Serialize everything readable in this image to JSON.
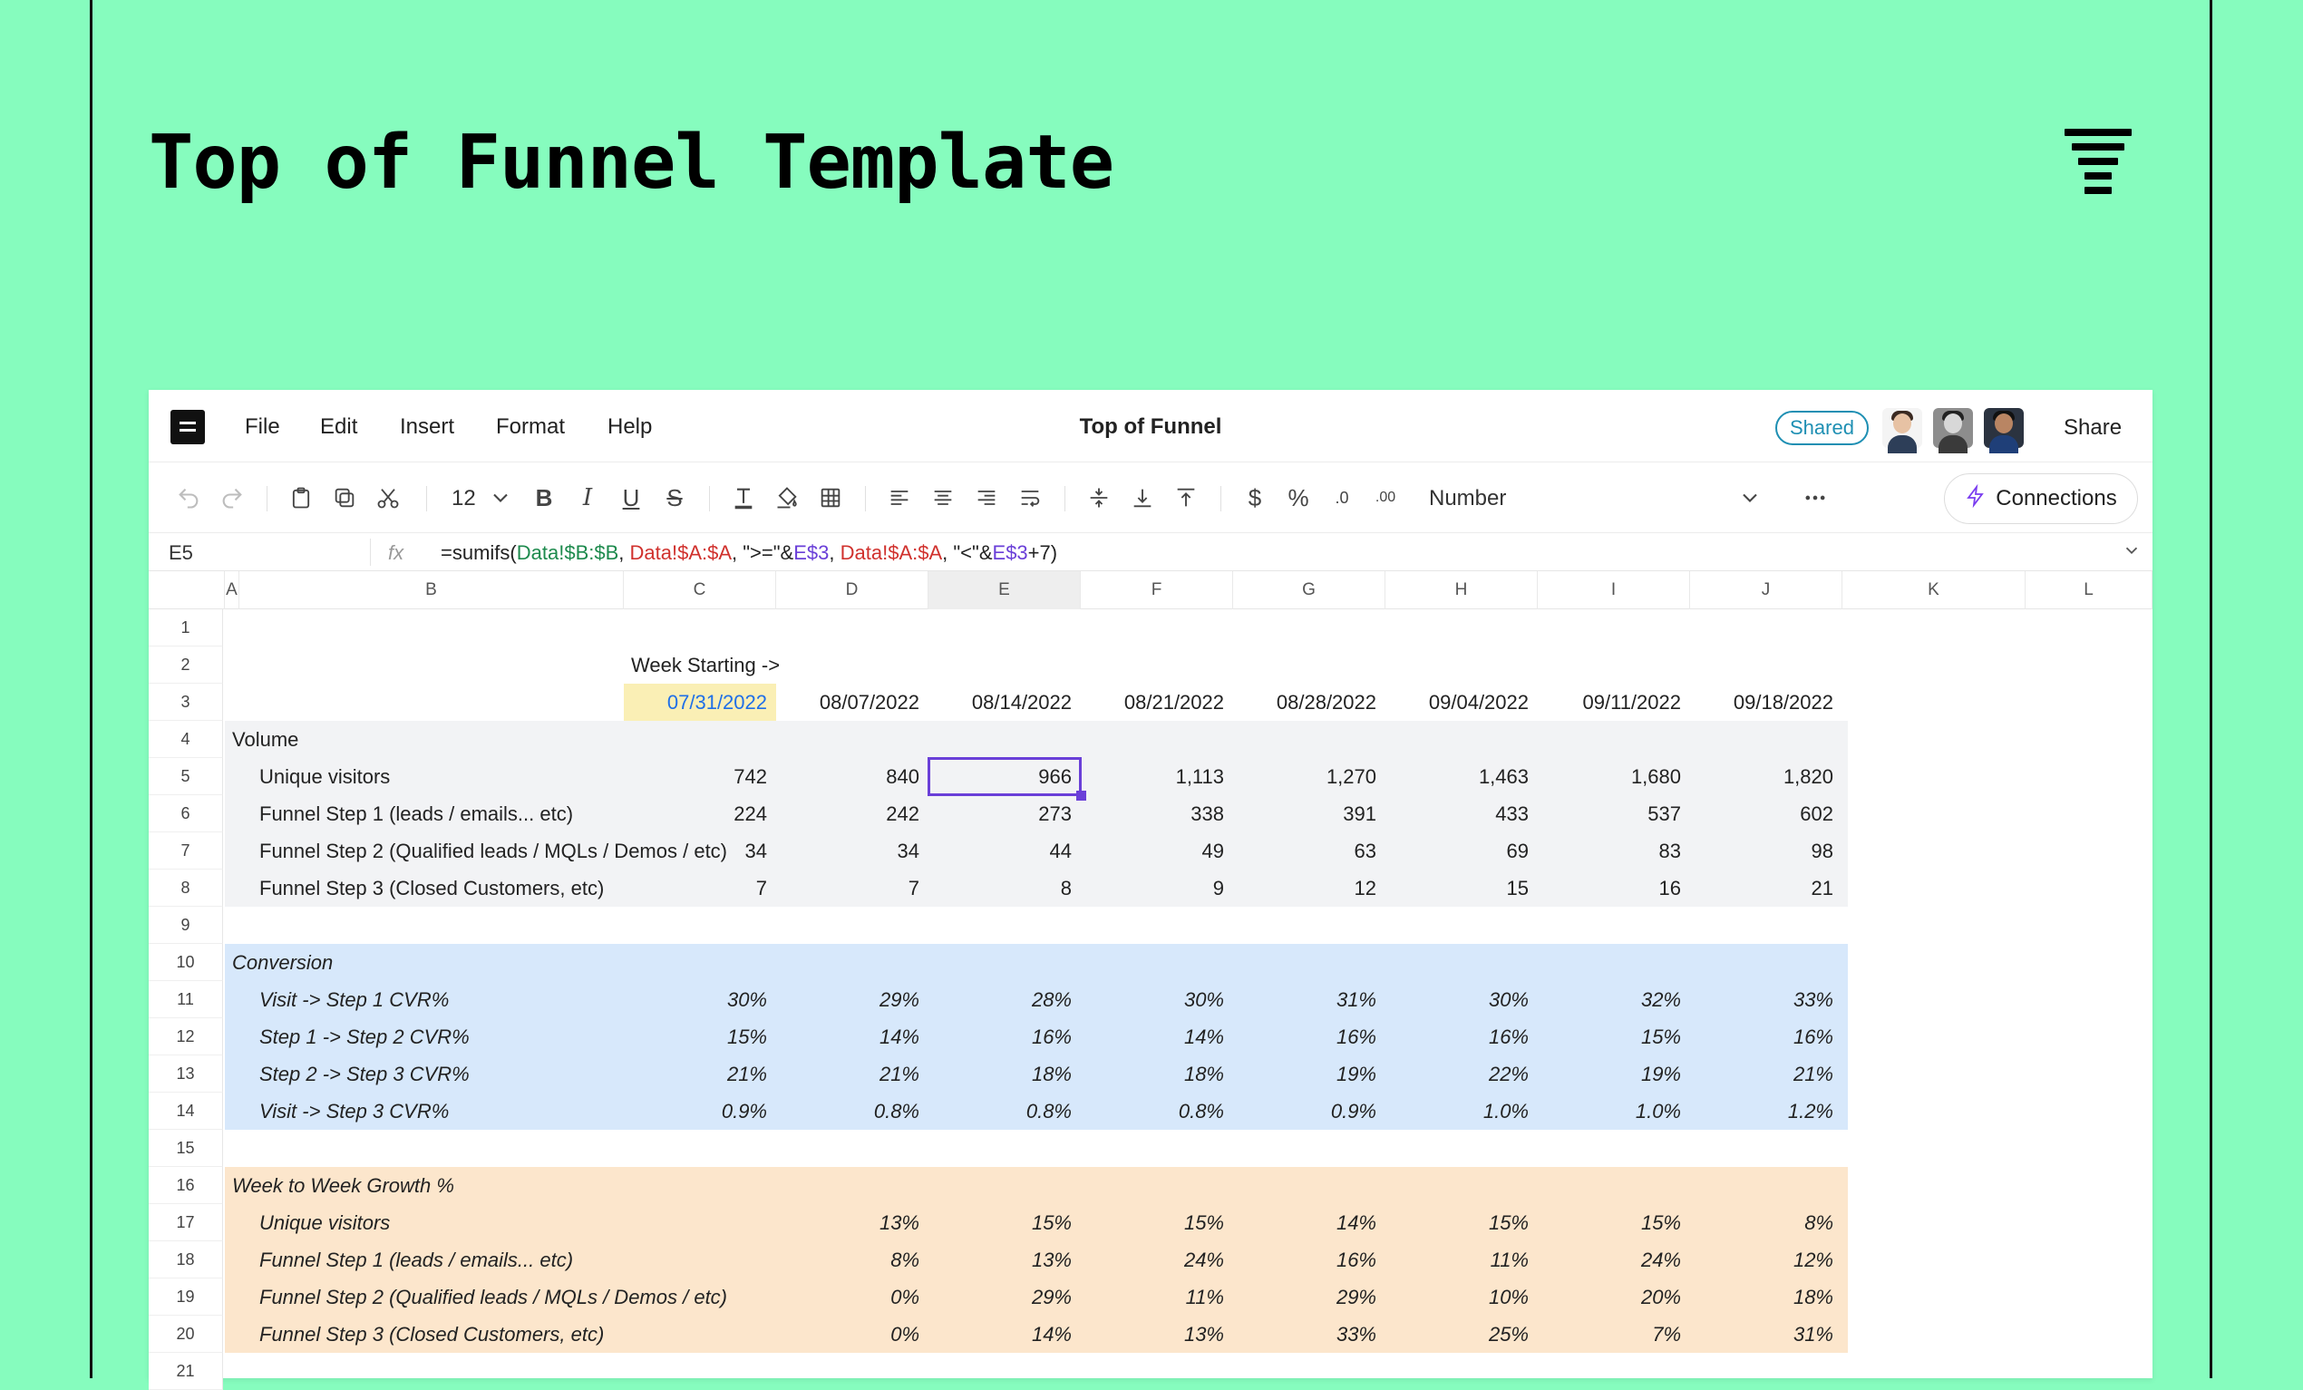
{
  "page": {
    "title": "Top of Funnel Template",
    "logo_icon": "funnel-lines-icon",
    "background": "#86fcbe"
  },
  "menubar": {
    "items": [
      "File",
      "Edit",
      "Insert",
      "Format",
      "Help"
    ],
    "doc_title": "Top of Funnel",
    "shared_label": "Shared",
    "share_label": "Share"
  },
  "toolbar": {
    "font_size": "12",
    "number_format": "Number",
    "connections_label": "Connections",
    "accent": "#7a3cf0"
  },
  "formulabar": {
    "cell_ref": "E5",
    "fx_label": "fx",
    "formula_parts": [
      {
        "t": "=sumifs(",
        "c": "plain"
      },
      {
        "t": "Data!$B:$B",
        "c": "green"
      },
      {
        "t": ", ",
        "c": "plain"
      },
      {
        "t": "Data!$A:$A",
        "c": "red"
      },
      {
        "t": ", \">=\"&",
        "c": "plain"
      },
      {
        "t": "E$3",
        "c": "purple"
      },
      {
        "t": ", ",
        "c": "plain"
      },
      {
        "t": "Data!$A:$A",
        "c": "red"
      },
      {
        "t": ", \"<\"&",
        "c": "plain"
      },
      {
        "t": "E$3",
        "c": "purple"
      },
      {
        "t": "+7)",
        "c": "plain"
      }
    ]
  },
  "grid": {
    "columns": [
      "A",
      "B",
      "C",
      "D",
      "E",
      "F",
      "G",
      "H",
      "I",
      "J",
      "K",
      "L"
    ],
    "selected_column": "E",
    "row_numbers": [
      "1",
      "2",
      "3",
      "4",
      "5",
      "6",
      "7",
      "8",
      "9",
      "10",
      "11",
      "12",
      "13",
      "14",
      "15",
      "16",
      "17",
      "18",
      "19",
      "20",
      "21"
    ],
    "week_starting_label": "Week Starting ->",
    "dates": [
      "07/31/2022",
      "08/07/2022",
      "08/14/2022",
      "08/21/2022",
      "08/28/2022",
      "09/04/2022",
      "09/11/2022",
      "09/18/2022"
    ],
    "volume": {
      "header": "Volume",
      "rows": [
        {
          "label": "Unique visitors",
          "values": [
            "742",
            "840",
            "966",
            "1,113",
            "1,270",
            "1,463",
            "1,680",
            "1,820"
          ]
        },
        {
          "label": "Funnel Step 1 (leads / emails... etc)",
          "values": [
            "224",
            "242",
            "273",
            "338",
            "391",
            "433",
            "537",
            "602"
          ]
        },
        {
          "label": "Funnel Step 2 (Qualified leads / MQLs / Demos / etc)",
          "values": [
            "34",
            "34",
            "44",
            "49",
            "63",
            "69",
            "83",
            "98"
          ]
        },
        {
          "label": "Funnel Step 3 (Closed Customers, etc)",
          "values": [
            "7",
            "7",
            "8",
            "9",
            "12",
            "15",
            "16",
            "21"
          ]
        }
      ]
    },
    "conversion": {
      "header": "Conversion",
      "rows": [
        {
          "label": "Visit -> Step 1 CVR%",
          "values": [
            "30%",
            "29%",
            "28%",
            "30%",
            "31%",
            "30%",
            "32%",
            "33%"
          ]
        },
        {
          "label": "Step 1 -> Step 2 CVR%",
          "values": [
            "15%",
            "14%",
            "16%",
            "14%",
            "16%",
            "16%",
            "15%",
            "16%"
          ]
        },
        {
          "label": "Step 2 -> Step 3 CVR%",
          "values": [
            "21%",
            "21%",
            "18%",
            "18%",
            "19%",
            "22%",
            "19%",
            "21%"
          ]
        },
        {
          "label": "Visit -> Step 3 CVR%",
          "values": [
            "0.9%",
            "0.8%",
            "0.8%",
            "0.8%",
            "0.9%",
            "1.0%",
            "1.0%",
            "1.2%"
          ]
        }
      ]
    },
    "growth": {
      "header": "Week to Week Growth %",
      "rows": [
        {
          "label": "Unique visitors",
          "values": [
            "",
            "13%",
            "15%",
            "15%",
            "14%",
            "15%",
            "15%",
            "8%"
          ]
        },
        {
          "label": "Funnel Step 1 (leads / emails... etc)",
          "values": [
            "",
            "8%",
            "13%",
            "24%",
            "16%",
            "11%",
            "24%",
            "12%"
          ]
        },
        {
          "label": "Funnel Step 2 (Qualified leads / MQLs / Demos / etc)",
          "values": [
            "",
            "0%",
            "29%",
            "11%",
            "29%",
            "10%",
            "20%",
            "18%"
          ]
        },
        {
          "label": "Funnel Step 3 (Closed Customers, etc)",
          "values": [
            "",
            "0%",
            "14%",
            "13%",
            "33%",
            "25%",
            "7%",
            "31%"
          ]
        }
      ]
    },
    "colors": {
      "volume_band": "#f2f3f5",
      "conversion_band": "#d7e8fb",
      "growth_band": "#fce6cc",
      "date_highlight": "#faefb5",
      "selection": "#6a3fd8"
    }
  }
}
